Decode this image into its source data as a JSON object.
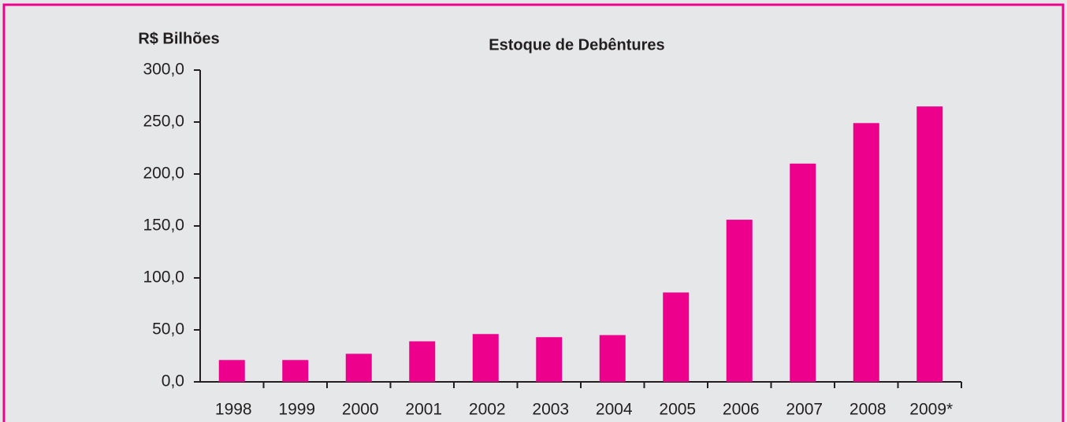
{
  "chart_data": {
    "type": "bar",
    "title": "Estoque de Debêntures",
    "y_label": "R$ Bilhões",
    "categories": [
      "1998",
      "1999",
      "2000",
      "2001",
      "2002",
      "2003",
      "2004",
      "2005",
      "2006",
      "2007",
      "2008",
      "2009*"
    ],
    "values": [
      21,
      21,
      27,
      39,
      46,
      43,
      45,
      86,
      156,
      210,
      249,
      265
    ],
    "color": "#ec008c",
    "ylim": [
      0,
      300
    ],
    "yticks": [
      {
        "value": 0,
        "label": "0,0"
      },
      {
        "value": 50,
        "label": "50,0"
      },
      {
        "value": 100,
        "label": "100,0"
      },
      {
        "value": 150,
        "label": "150,0"
      },
      {
        "value": 200,
        "label": "200,0"
      },
      {
        "value": 250,
        "label": "250,0"
      },
      {
        "value": 300,
        "label": "300,0"
      }
    ]
  }
}
